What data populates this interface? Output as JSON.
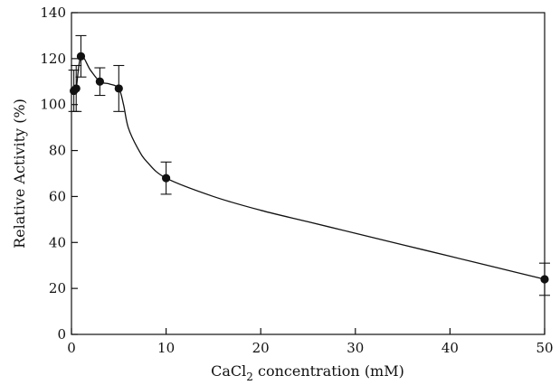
{
  "chart_data": {
    "type": "line",
    "title": "",
    "xlabel": "CaCl2 concentration (mM)",
    "ylabel": "Relative Activity (%)",
    "xlim": [
      0,
      50
    ],
    "ylim": [
      0,
      140
    ],
    "x_ticks": [
      0,
      10,
      20,
      30,
      40,
      50
    ],
    "y_ticks": [
      0,
      20,
      40,
      60,
      80,
      100,
      120,
      140
    ],
    "grid": false,
    "legend": "none",
    "colors": {
      "line": "#111111",
      "marker": "#111111",
      "axis": "#111111"
    },
    "series": [
      {
        "x": [
          0.25,
          0.5,
          1,
          3,
          5,
          10,
          50
        ],
        "y": [
          106,
          107,
          121,
          110,
          107,
          68,
          24
        ],
        "error": [
          9,
          10,
          9,
          6,
          10,
          7,
          7
        ]
      }
    ],
    "curve": {
      "x": [
        0.25,
        0.5,
        1,
        2,
        3,
        4,
        5,
        5.5,
        6,
        7,
        8,
        10,
        15,
        20,
        25,
        30,
        35,
        40,
        45,
        50
      ],
      "y": [
        106,
        107,
        121,
        115,
        110,
        109,
        107,
        100,
        90,
        81,
        75,
        68,
        60,
        54,
        49,
        44,
        39,
        34,
        29,
        24
      ]
    }
  }
}
